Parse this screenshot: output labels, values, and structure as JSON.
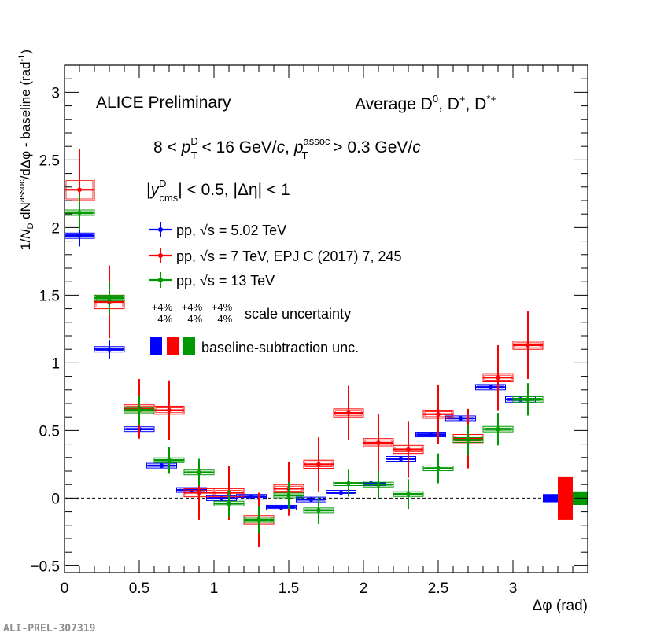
{
  "chart_data": {
    "type": "scatter",
    "title": "ALICE Preliminary",
    "subtitle": "Average D0, D+, D*+",
    "kinematics": "8 < pT^D < 16 GeV/c, pT^assoc > 0.3 GeV/c",
    "rapidity_cut": "|y_cms^D| < 0.5, |Δη| < 1",
    "xlabel": "Δφ (rad)",
    "ylabel": "1/N_D dN^assoc/dΔφ - baseline (rad^-1)",
    "xlim": [
      0,
      3.5
    ],
    "ylim": [
      -0.55,
      3.2
    ],
    "xticks": [
      "0",
      "0.5",
      "1",
      "1.5",
      "2",
      "2.5",
      "3"
    ],
    "yticks": [
      "−0.5",
      "0",
      "0.5",
      "1",
      "1.5",
      "2",
      "2.5",
      "3"
    ],
    "bin_half_width": 0.1,
    "series": [
      {
        "name": "pp, √s = 5.02 TeV",
        "color": "#0000ff",
        "x": [
          0.1,
          0.3,
          0.5,
          0.65,
          0.85,
          1.05,
          1.25,
          1.45,
          1.65,
          1.85,
          2.05,
          2.25,
          2.45,
          2.65,
          2.85,
          3.05
        ],
        "y": [
          1.94,
          1.1,
          0.51,
          0.24,
          0.06,
          0.0,
          0.01,
          -0.07,
          -0.01,
          0.04,
          0.11,
          0.29,
          0.47,
          0.59,
          0.82,
          0.73
        ],
        "stat_err": [
          0.08,
          0.07,
          0.0,
          0.0,
          0.0,
          0.0,
          0.0,
          0.0,
          0.0,
          0.0,
          0.0,
          0.0,
          0.0,
          0.0,
          0.0,
          0.0
        ],
        "syst_err": [
          0.02,
          0.02,
          0.01,
          0.01,
          0.01,
          0.01,
          0.01,
          0.01,
          0.01,
          0.01,
          0.01,
          0.01,
          0.01,
          0.01,
          0.02,
          0.02
        ]
      },
      {
        "name": "pp, √s = 7 TeV, EPJ C (2017) 7, 245",
        "color": "#ff0000",
        "x": [
          0.1,
          0.3,
          0.5,
          0.7,
          0.9,
          1.1,
          1.3,
          1.5,
          1.7,
          1.9,
          2.1,
          2.3,
          2.5,
          2.7,
          2.9,
          3.1
        ],
        "y": [
          2.28,
          1.45,
          0.66,
          0.65,
          0.04,
          0.04,
          -0.16,
          0.07,
          0.25,
          0.63,
          0.41,
          0.36,
          0.62,
          0.44,
          0.89,
          1.13
        ],
        "stat_err": [
          0.3,
          0.27,
          0.22,
          0.22,
          0.2,
          0.2,
          0.2,
          0.2,
          0.2,
          0.2,
          0.21,
          0.21,
          0.22,
          0.22,
          0.24,
          0.25
        ],
        "syst_err": [
          0.08,
          0.05,
          0.03,
          0.03,
          0.03,
          0.03,
          0.03,
          0.03,
          0.03,
          0.03,
          0.03,
          0.03,
          0.03,
          0.03,
          0.03,
          0.03
        ]
      },
      {
        "name": "pp, √s = 13 TeV",
        "color": "#009900",
        "x": [
          0.1,
          0.3,
          0.5,
          0.7,
          0.9,
          1.1,
          1.3,
          1.5,
          1.7,
          1.9,
          2.1,
          2.3,
          2.5,
          2.7,
          2.9,
          3.1
        ],
        "y": [
          2.11,
          1.48,
          0.65,
          0.28,
          0.19,
          -0.04,
          -0.16,
          0.02,
          -0.09,
          0.11,
          0.1,
          0.03,
          0.22,
          0.43,
          0.51,
          0.73
        ],
        "stat_err": [
          0.13,
          0.12,
          0.11,
          0.1,
          0.1,
          0.1,
          0.1,
          0.1,
          0.1,
          0.1,
          0.1,
          0.11,
          0.11,
          0.11,
          0.12,
          0.12
        ],
        "syst_err": [
          0.02,
          0.02,
          0.02,
          0.01,
          0.01,
          0.01,
          0.01,
          0.01,
          0.01,
          0.01,
          0.01,
          0.01,
          0.01,
          0.01,
          0.02,
          0.02
        ]
      }
    ],
    "baseline_uncertainty": [
      {
        "series": "pp, √s = 5.02 TeV",
        "color": "#0000ff",
        "x": 3.25,
        "half_height": 0.03
      },
      {
        "series": "pp, √s = 7 TeV",
        "color": "#ff0000",
        "x": 3.35,
        "half_height": 0.16
      },
      {
        "series": "pp, √s = 13 TeV",
        "color": "#009900",
        "x": 3.45,
        "half_height": 0.05
      }
    ],
    "scale_uncertainty_label": "scale uncertainty",
    "scale_uncertainties": [
      {
        "color": "#0000ff",
        "plus": "+4%",
        "minus": "−4%"
      },
      {
        "color": "#ff0000",
        "plus": "+4%",
        "minus": "−4%"
      },
      {
        "color": "#009900",
        "plus": "+4%",
        "minus": "−4%"
      }
    ],
    "baseline_label": "baseline-subtraction unc.",
    "legend_position": "top-left"
  },
  "watermark": "ALI-PREL-307319"
}
